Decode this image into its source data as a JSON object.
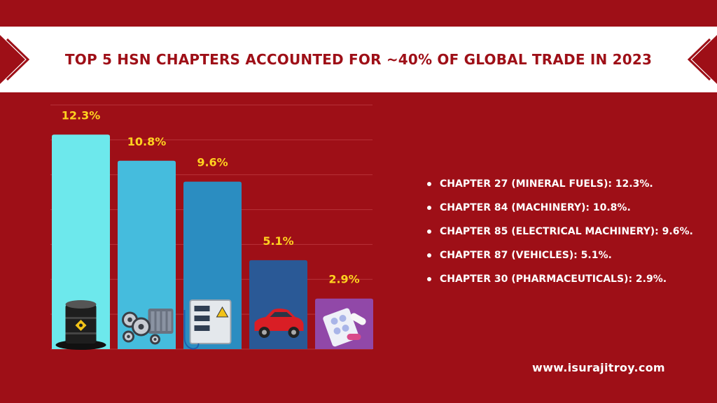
{
  "banner": {
    "title": "Top 5 HSN Chapters Accounted For ~40% of Global Trade in 2023"
  },
  "chart_data": {
    "type": "bar",
    "title": "Top 5 HSN Chapters Accounted For ~40% of Global Trade in 2023",
    "categories": [
      "Chapter 27",
      "Chapter 84",
      "Chapter 85",
      "Chapter 87",
      "Chapter 30"
    ],
    "values": [
      12.3,
      10.8,
      9.6,
      5.1,
      2.9
    ],
    "value_labels": [
      "12.3%",
      "10.8%",
      "9.6%",
      "5.1%",
      "2.9%"
    ],
    "ylim": [
      0,
      14
    ],
    "grid": true,
    "legend": "right",
    "bar_colors": [
      "#6de8ec",
      "#45bcdd",
      "#2b8dc1",
      "#2a5996",
      "#9148a8"
    ],
    "label_color": "#ffd21f",
    "icons": [
      "oil-barrel-icon",
      "engine-icon",
      "electrical-panel-icon",
      "car-icon",
      "pills-icon"
    ]
  },
  "legend": {
    "items": [
      "Chapter 27 (Mineral Fuels): 12.3%.",
      "Chapter 84 (Machinery): 10.8%.",
      "Chapter 85 (Electrical Machinery): 9.6%.",
      "Chapter 87 (Vehicles): 5.1%.",
      "Chapter 30 (Pharmaceuticals): 2.9%."
    ]
  },
  "footer": {
    "url": "www.isurajitroy.com"
  }
}
